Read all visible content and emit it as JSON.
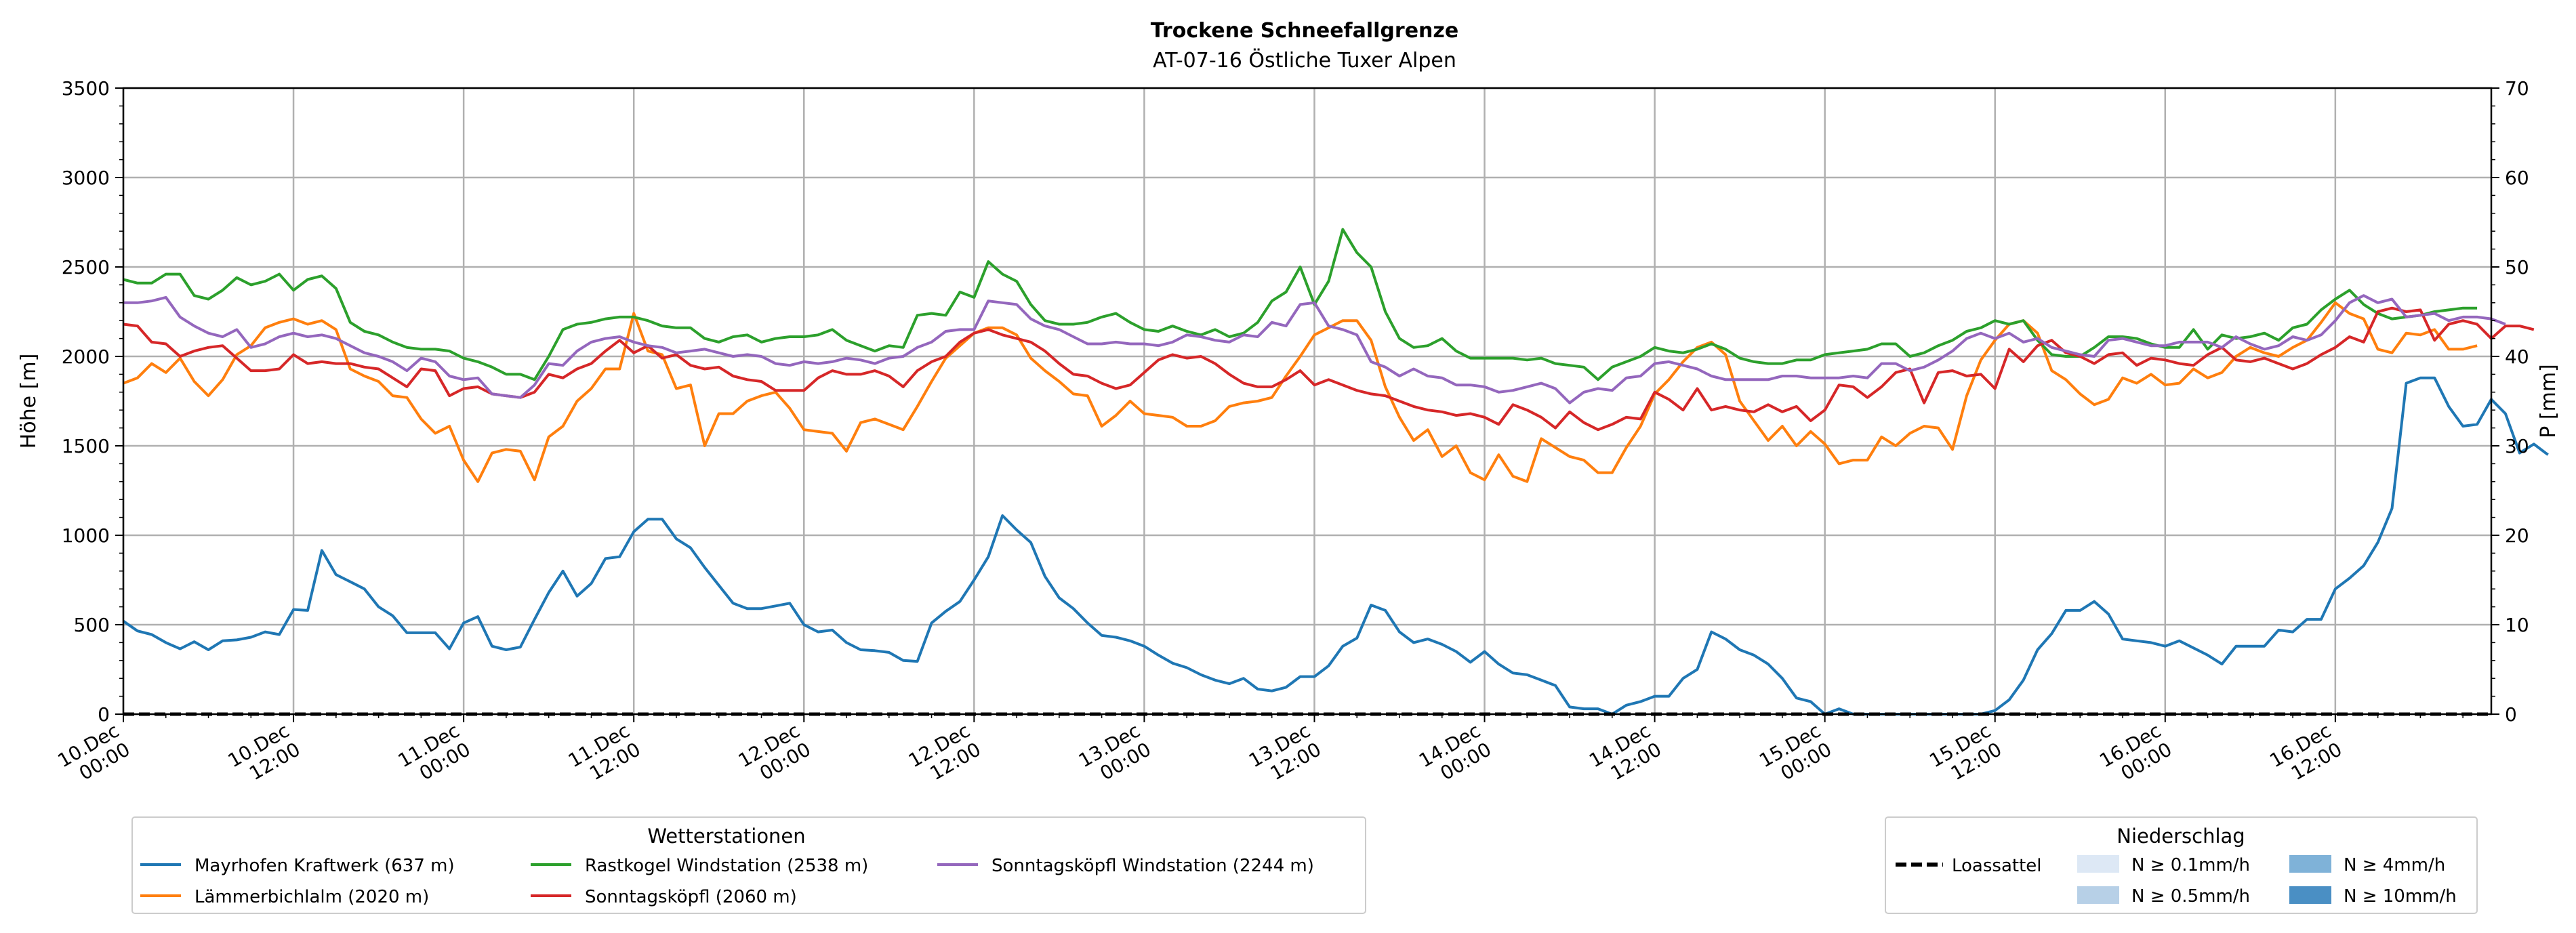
{
  "chart_data": {
    "type": "line",
    "title": "Trockene Schneefallgrenze",
    "subtitle": "AT-07-16 Östliche Tuxer Alpen",
    "ylabel": "Höhe [m]",
    "y2label": "P [mm]",
    "ylim": [
      0,
      3500
    ],
    "y2lim": [
      0,
      70
    ],
    "yticks": [
      0,
      500,
      1000,
      1500,
      2000,
      2500,
      3000,
      3500
    ],
    "y2ticks": [
      0,
      10,
      20,
      30,
      40,
      50,
      60,
      70
    ],
    "xlim_hours": [
      0,
      167
    ],
    "x_start": "10.Dec 00:00",
    "x_step_hours": 1,
    "xticks": [
      {
        "line1": "10.Dec",
        "line2": "00:00"
      },
      {
        "line1": "10.Dec",
        "line2": "12:00"
      },
      {
        "line1": "11.Dec",
        "line2": "00:00"
      },
      {
        "line1": "11.Dec",
        "line2": "12:00"
      },
      {
        "line1": "12.Dec",
        "line2": "00:00"
      },
      {
        "line1": "12.Dec",
        "line2": "12:00"
      },
      {
        "line1": "13.Dec",
        "line2": "00:00"
      },
      {
        "line1": "13.Dec",
        "line2": "12:00"
      },
      {
        "line1": "14.Dec",
        "line2": "00:00"
      },
      {
        "line1": "14.Dec",
        "line2": "12:00"
      },
      {
        "line1": "15.Dec",
        "line2": "00:00"
      },
      {
        "line1": "15.Dec",
        "line2": "12:00"
      },
      {
        "line1": "16.Dec",
        "line2": "00:00"
      },
      {
        "line1": "16.Dec",
        "line2": "12:00"
      }
    ],
    "grid": true,
    "legend_position": "bottom-left",
    "series": [
      {
        "name": "Mayrhofen Kraftwerk (637 m)",
        "color": "#1f77b4",
        "values": [
          520,
          465,
          445,
          400,
          365,
          405,
          360,
          410,
          415,
          430,
          460,
          445,
          585,
          580,
          915,
          780,
          740,
          700,
          600,
          550,
          455,
          455,
          455,
          365,
          510,
          545,
          380,
          360,
          375,
          530,
          680,
          800,
          660,
          730,
          870,
          880,
          1020,
          1090,
          1090,
          980,
          930,
          820,
          720,
          620,
          590,
          590,
          605,
          620,
          500,
          460,
          470,
          400,
          360,
          355,
          345,
          300,
          295,
          510,
          575,
          630,
          750,
          880,
          1110,
          1030,
          960,
          770,
          650,
          590,
          510,
          440,
          430,
          410,
          380,
          330,
          285,
          260,
          220,
          190,
          170,
          200,
          140,
          130,
          150,
          210,
          210,
          270,
          380,
          425,
          610,
          580,
          460,
          400,
          420,
          390,
          350,
          290,
          350,
          280,
          230,
          220,
          190,
          160,
          40,
          30,
          30,
          0,
          50,
          70,
          100,
          100,
          200,
          250,
          460,
          420,
          360,
          330,
          280,
          200,
          90,
          70,
          0,
          30,
          0,
          0,
          0,
          0,
          0,
          0,
          0,
          0,
          0,
          0,
          20,
          80,
          190,
          360,
          450,
          580,
          580,
          630,
          560,
          420,
          410,
          400,
          380,
          410,
          370,
          330,
          280,
          380,
          380,
          380,
          470,
          460,
          530,
          530,
          700,
          760,
          830,
          960,
          1150,
          1850,
          1880,
          1880,
          1720,
          1610,
          1620,
          1760,
          1680,
          1460,
          1510,
          1450
        ]
      },
      {
        "name": "Lämmerbichlalm (2020 m)",
        "color": "#ff7f0e",
        "values": [
          1850,
          1880,
          1960,
          1910,
          1990,
          1860,
          1780,
          1870,
          2010,
          2060,
          2160,
          2190,
          2210,
          2180,
          2200,
          2150,
          1930,
          1890,
          1860,
          1780,
          1770,
          1650,
          1570,
          1610,
          1420,
          1300,
          1460,
          1480,
          1470,
          1310,
          1550,
          1610,
          1750,
          1820,
          1930,
          1930,
          2240,
          2030,
          2010,
          1820,
          1840,
          1500,
          1680,
          1680,
          1750,
          1780,
          1800,
          1710,
          1590,
          1580,
          1570,
          1470,
          1630,
          1650,
          1620,
          1590,
          1720,
          1860,
          1990,
          2060,
          2130,
          2160,
          2160,
          2120,
          1990,
          1920,
          1860,
          1790,
          1780,
          1610,
          1670,
          1750,
          1680,
          1670,
          1660,
          1610,
          1610,
          1640,
          1720,
          1740,
          1750,
          1770,
          1890,
          2000,
          2120,
          2160,
          2200,
          2200,
          2090,
          1830,
          1660,
          1530,
          1590,
          1440,
          1500,
          1350,
          1310,
          1450,
          1330,
          1300,
          1540,
          1490,
          1440,
          1420,
          1350,
          1350,
          1490,
          1610,
          1790,
          1870,
          1970,
          2050,
          2080,
          2010,
          1750,
          1640,
          1530,
          1610,
          1500,
          1580,
          1510,
          1400,
          1420,
          1420,
          1550,
          1500,
          1570,
          1610,
          1600,
          1480,
          1780,
          1980,
          2090,
          2180,
          2200,
          2130,
          1920,
          1870,
          1790,
          1730,
          1760,
          1880,
          1850,
          1900,
          1840,
          1850,
          1930,
          1880,
          1910,
          2000,
          2050,
          2020,
          2000,
          2050,
          2090,
          2190,
          2300,
          2240,
          2210,
          2040,
          2020,
          2130,
          2120,
          2150,
          2040,
          2040,
          2060
        ]
      },
      {
        "name": "Rastkogel Windstation (2538 m)",
        "color": "#2ca02c",
        "values": [
          2430,
          2410,
          2410,
          2460,
          2460,
          2340,
          2320,
          2370,
          2440,
          2400,
          2420,
          2460,
          2370,
          2430,
          2450,
          2380,
          2190,
          2140,
          2120,
          2080,
          2050,
          2040,
          2040,
          2030,
          1990,
          1970,
          1940,
          1900,
          1900,
          1870,
          2000,
          2150,
          2180,
          2190,
          2210,
          2220,
          2220,
          2200,
          2170,
          2160,
          2160,
          2100,
          2080,
          2110,
          2120,
          2080,
          2100,
          2110,
          2110,
          2120,
          2150,
          2090,
          2060,
          2030,
          2060,
          2050,
          2230,
          2240,
          2230,
          2360,
          2330,
          2530,
          2460,
          2420,
          2290,
          2200,
          2180,
          2180,
          2190,
          2220,
          2240,
          2190,
          2150,
          2140,
          2170,
          2140,
          2120,
          2150,
          2110,
          2130,
          2190,
          2310,
          2360,
          2500,
          2290,
          2420,
          2710,
          2580,
          2500,
          2250,
          2100,
          2050,
          2060,
          2100,
          2030,
          1990,
          1990,
          1990,
          1990,
          1980,
          1990,
          1960,
          1950,
          1940,
          1870,
          1940,
          1970,
          2000,
          2050,
          2030,
          2020,
          2040,
          2070,
          2040,
          1990,
          1970,
          1960,
          1960,
          1980,
          1980,
          2010,
          2020,
          2030,
          2040,
          2070,
          2070,
          2000,
          2020,
          2060,
          2090,
          2140,
          2160,
          2200,
          2180,
          2200,
          2090,
          2010,
          2000,
          2000,
          2050,
          2110,
          2110,
          2100,
          2070,
          2050,
          2050,
          2150,
          2040,
          2120,
          2100,
          2110,
          2130,
          2090,
          2160,
          2180,
          2260,
          2320,
          2370,
          2290,
          2240,
          2210,
          2220,
          2230,
          2250,
          2260,
          2270,
          2270
        ]
      },
      {
        "name": "Sonntagsköpfl (2060 m)",
        "color": "#d62728",
        "values": [
          2180,
          2170,
          2080,
          2070,
          2000,
          2030,
          2050,
          2060,
          1990,
          1920,
          1920,
          1930,
          2010,
          1960,
          1970,
          1960,
          1960,
          1940,
          1930,
          1880,
          1830,
          1930,
          1920,
          1780,
          1820,
          1830,
          1790,
          1780,
          1770,
          1800,
          1900,
          1880,
          1930,
          1960,
          2030,
          2090,
          2020,
          2060,
          1990,
          2010,
          1950,
          1930,
          1940,
          1890,
          1870,
          1860,
          1810,
          1810,
          1810,
          1880,
          1920,
          1900,
          1900,
          1920,
          1890,
          1830,
          1920,
          1970,
          2000,
          2080,
          2130,
          2150,
          2120,
          2100,
          2080,
          2030,
          1960,
          1900,
          1890,
          1850,
          1820,
          1840,
          1910,
          1980,
          2010,
          1990,
          2000,
          1960,
          1900,
          1850,
          1830,
          1830,
          1870,
          1920,
          1840,
          1870,
          1840,
          1810,
          1790,
          1780,
          1750,
          1720,
          1700,
          1690,
          1670,
          1680,
          1660,
          1620,
          1730,
          1700,
          1660,
          1600,
          1690,
          1630,
          1590,
          1620,
          1660,
          1650,
          1800,
          1760,
          1700,
          1820,
          1700,
          1720,
          1700,
          1690,
          1730,
          1690,
          1720,
          1640,
          1700,
          1840,
          1830,
          1770,
          1830,
          1910,
          1930,
          1740,
          1910,
          1920,
          1890,
          1900,
          1820,
          2040,
          1970,
          2060,
          2090,
          2020,
          2000,
          1960,
          2010,
          2020,
          1950,
          1990,
          1980,
          1960,
          1950,
          2010,
          2050,
          1980,
          1970,
          1990,
          1960,
          1930,
          1960,
          2010,
          2050,
          2110,
          2080,
          2250,
          2270,
          2250,
          2260,
          2090,
          2180,
          2200,
          2180,
          2100,
          2170,
          2170,
          2150
        ]
      },
      {
        "name": "Sonntagsköpfl Windstation (2244 m)",
        "color": "#9467bd",
        "values": [
          2300,
          2300,
          2310,
          2330,
          2220,
          2170,
          2130,
          2110,
          2150,
          2050,
          2070,
          2110,
          2130,
          2110,
          2120,
          2100,
          2060,
          2020,
          2000,
          1970,
          1920,
          1990,
          1970,
          1890,
          1870,
          1880,
          1790,
          1780,
          1770,
          1840,
          1960,
          1950,
          2030,
          2080,
          2100,
          2110,
          2080,
          2060,
          2050,
          2020,
          2030,
          2040,
          2020,
          2000,
          2010,
          2000,
          1960,
          1950,
          1970,
          1960,
          1970,
          1990,
          1980,
          1960,
          1990,
          2000,
          2050,
          2080,
          2140,
          2150,
          2150,
          2310,
          2300,
          2290,
          2210,
          2170,
          2150,
          2110,
          2070,
          2070,
          2080,
          2070,
          2070,
          2060,
          2080,
          2120,
          2110,
          2090,
          2080,
          2120,
          2110,
          2190,
          2170,
          2290,
          2300,
          2170,
          2150,
          2120,
          1970,
          1940,
          1890,
          1930,
          1890,
          1880,
          1840,
          1840,
          1830,
          1800,
          1810,
          1830,
          1850,
          1820,
          1740,
          1800,
          1820,
          1810,
          1880,
          1890,
          1960,
          1970,
          1950,
          1930,
          1890,
          1870,
          1870,
          1870,
          1870,
          1890,
          1890,
          1880,
          1880,
          1880,
          1890,
          1880,
          1960,
          1960,
          1920,
          1940,
          1980,
          2030,
          2100,
          2130,
          2100,
          2130,
          2080,
          2100,
          2050,
          2030,
          2010,
          2000,
          2090,
          2100,
          2080,
          2060,
          2060,
          2080,
          2080,
          2080,
          2050,
          2110,
          2070,
          2040,
          2060,
          2110,
          2090,
          2120,
          2200,
          2300,
          2340,
          2300,
          2320,
          2220,
          2230,
          2240,
          2200,
          2220,
          2220,
          2210,
          2180
        ]
      },
      {
        "name": "Loassattel",
        "color": "#000000",
        "dashed": true,
        "values": [
          0,
          0,
          0,
          0,
          0,
          0,
          0,
          0,
          0,
          0,
          0,
          0,
          0,
          0,
          0,
          0,
          0,
          0,
          0,
          0,
          0,
          0,
          0,
          0,
          0,
          0,
          0,
          0,
          0,
          0,
          0,
          0,
          0,
          0,
          0,
          0,
          0,
          0,
          0,
          0,
          0,
          0,
          0,
          0,
          0,
          0,
          0,
          0,
          0,
          0,
          0,
          0,
          0,
          0,
          0,
          0,
          0,
          0,
          0,
          0,
          0,
          0,
          0,
          0,
          0,
          0,
          0,
          0,
          0,
          0,
          0,
          0,
          0,
          0,
          0,
          0,
          0,
          0,
          0,
          0,
          0,
          0,
          0,
          0,
          0,
          0,
          0,
          0,
          0,
          0,
          0,
          0,
          0,
          0,
          0,
          0,
          0,
          0,
          0,
          0,
          0,
          0,
          0,
          0,
          0,
          0,
          0,
          0,
          0,
          0,
          0,
          0,
          0,
          0,
          0,
          0,
          0,
          0,
          0,
          0,
          0,
          0,
          0,
          0,
          0,
          0,
          0,
          0,
          0,
          0,
          0,
          0,
          0,
          0,
          0,
          0,
          0,
          0,
          0,
          0,
          0,
          0,
          0,
          0,
          0,
          0,
          0,
          0,
          0,
          0,
          0,
          0,
          0,
          0,
          0,
          0,
          0,
          0,
          0,
          0,
          0,
          0,
          0,
          0,
          0,
          0,
          0,
          0
        ]
      }
    ],
    "legend_stations": {
      "title": "Wetterstationen",
      "entries": [
        {
          "label": "Mayrhofen Kraftwerk (637 m)",
          "color": "#1f77b4"
        },
        {
          "label": "Lämmerbichlalm (2020 m)",
          "color": "#ff7f0e"
        },
        {
          "label": "Rastkogel Windstation (2538 m)",
          "color": "#2ca02c"
        },
        {
          "label": "Sonntagsköpfl (2060 m)",
          "color": "#d62728"
        },
        {
          "label": "Sonntagsköpfl Windstation (2244 m)",
          "color": "#9467bd"
        }
      ]
    },
    "legend_precip": {
      "title": "Niederschlag",
      "line_entry": {
        "label": "Loassattel",
        "color": "#000000"
      },
      "patch_entries": [
        {
          "label": "N ≥ 0.1mm/h",
          "color": "#dde8f5"
        },
        {
          "label": "N ≥ 0.5mm/h",
          "color": "#b7d0e7"
        },
        {
          "label": "N ≥ 4mm/h",
          "color": "#7fb2d8"
        },
        {
          "label": "N ≥ 10mm/h",
          "color": "#4a8fc4"
        }
      ]
    }
  }
}
